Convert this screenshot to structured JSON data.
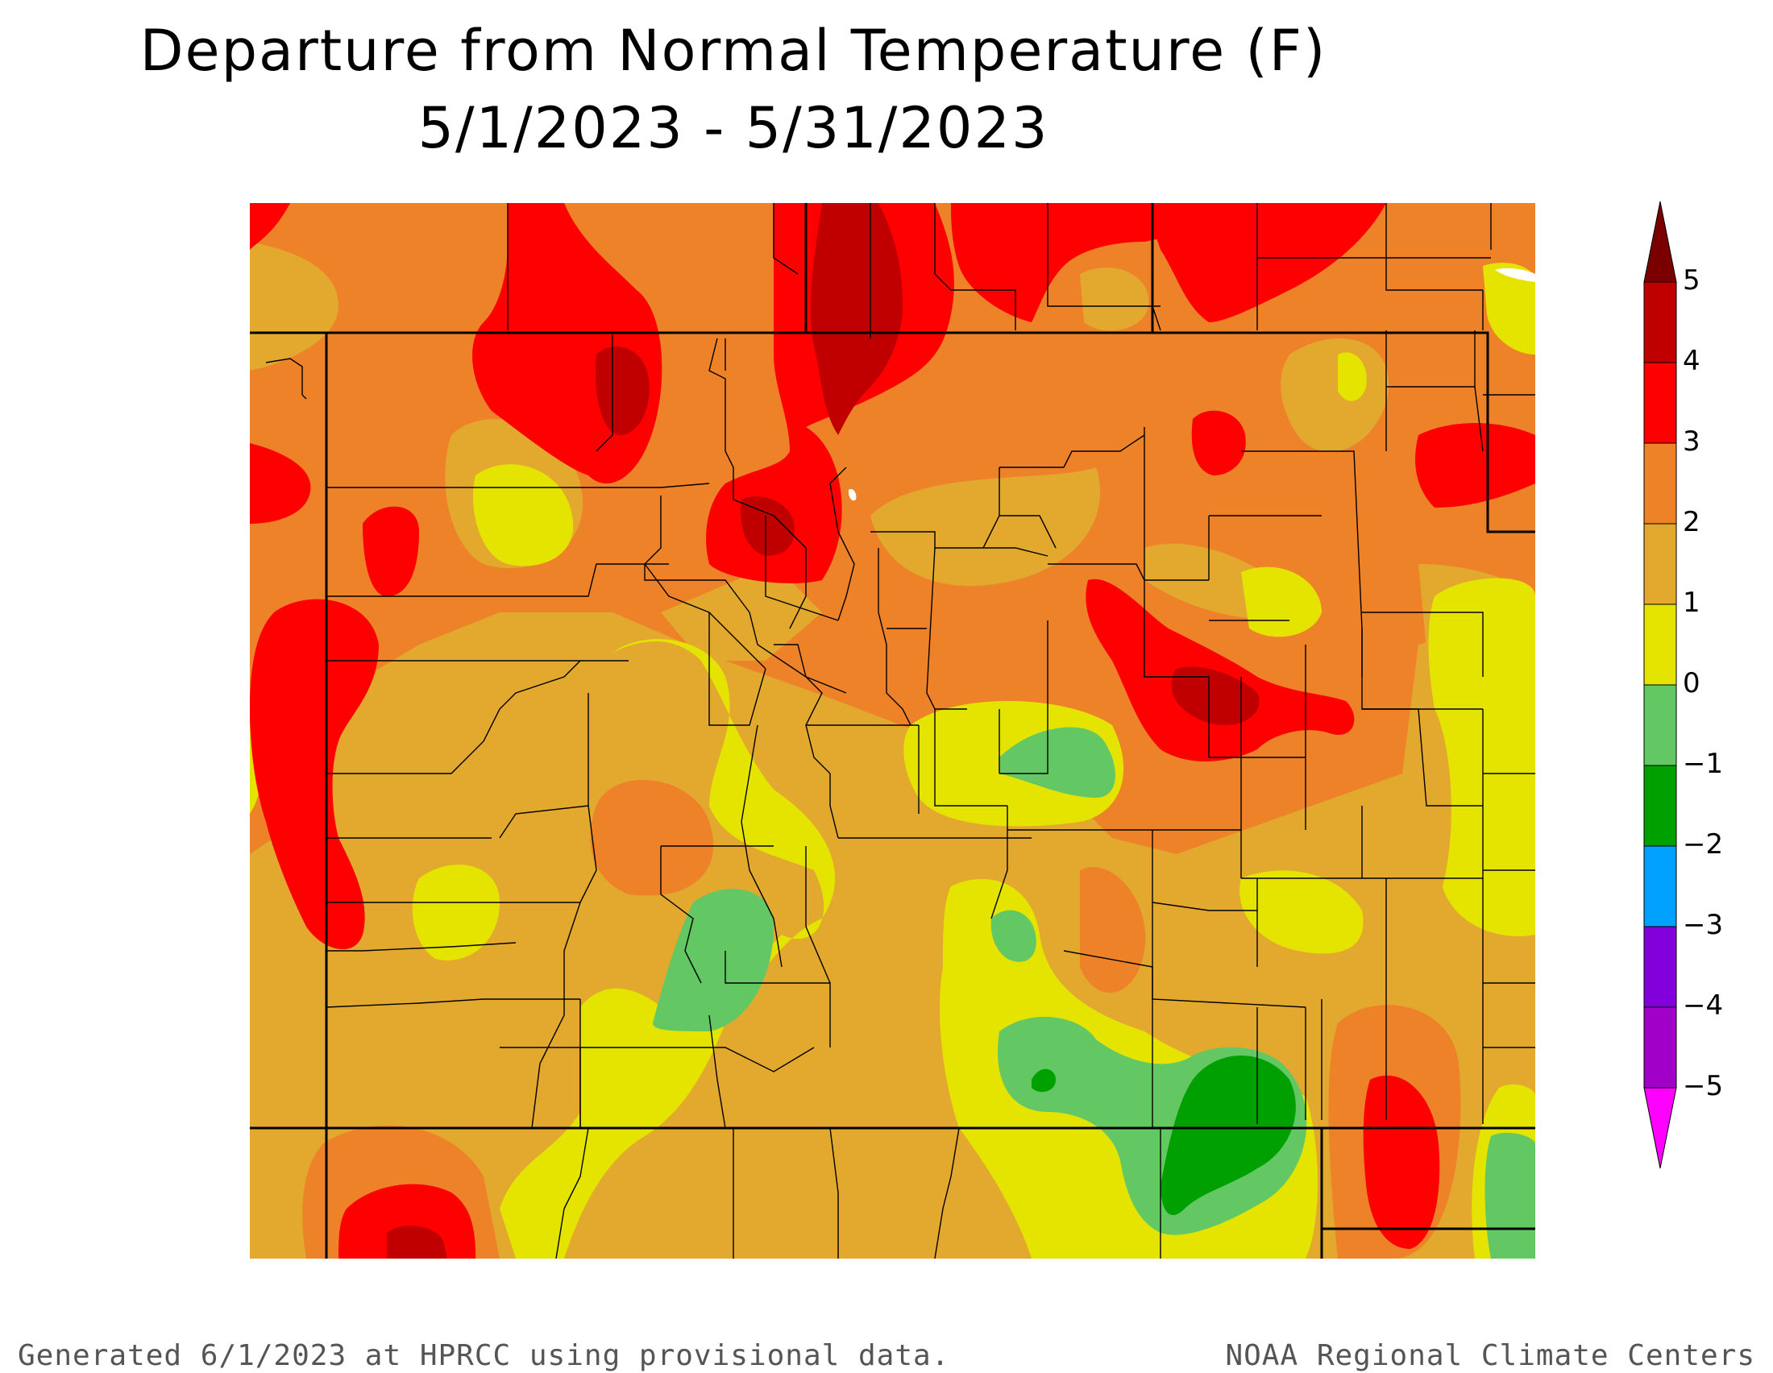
{
  "title": {
    "line1": "Departure from Normal Temperature (F)",
    "line2": "5/1/2023 - 5/31/2023"
  },
  "footer": {
    "left": "Generated 6/1/2023 at HPRCC using provisional data.",
    "right": "NOAA Regional Climate Centers"
  },
  "legend": {
    "bins": [
      {
        "from": 5,
        "to": 6,
        "color": "#7a0000"
      },
      {
        "from": 4,
        "to": 5,
        "color": "#c00000"
      },
      {
        "from": 3,
        "to": 4,
        "color": "#ff0000"
      },
      {
        "from": 2,
        "to": 3,
        "color": "#ee8229"
      },
      {
        "from": 1,
        "to": 2,
        "color": "#e2a92e"
      },
      {
        "from": 0,
        "to": 1,
        "color": "#e4e400"
      },
      {
        "from": -1,
        "to": 0,
        "color": "#63c864"
      },
      {
        "from": -2,
        "to": -1,
        "color": "#00a000"
      },
      {
        "from": -3,
        "to": -2,
        "color": "#00a0ff"
      },
      {
        "from": -4,
        "to": -3,
        "color": "#8200dc"
      },
      {
        "from": -5,
        "to": -4,
        "color": "#a000c8"
      },
      {
        "from": -6,
        "to": -5,
        "color": "#ff00ff"
      }
    ],
    "labels": [
      "5",
      "4",
      "3",
      "2",
      "1",
      "0",
      "−1",
      "−2",
      "−3",
      "−4",
      "−5"
    ]
  }
}
